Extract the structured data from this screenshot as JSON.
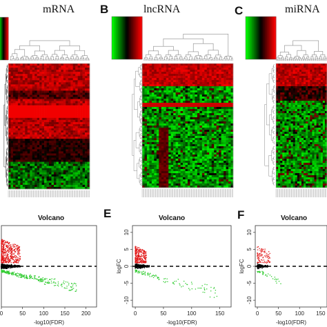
{
  "panels": [
    {
      "letter": "",
      "title": "mRNA"
    },
    {
      "letter": "B",
      "title": "lncRNA"
    },
    {
      "letter": "C",
      "title": "miRNA"
    },
    {
      "letter": "",
      "title": "Volcano"
    },
    {
      "letter": "E",
      "title": "Volcano"
    },
    {
      "letter": "F",
      "title": "Volcano"
    }
  ],
  "colors": {
    "up": "#e11919",
    "down": "#33cc33",
    "neutral": "#000000",
    "low": "#00ff00",
    "high": "#ff0000"
  },
  "chart_data": [
    {
      "type": "heatmap",
      "title": "mRNA",
      "palette": [
        "#00ff00",
        "#000000",
        "#ff0000"
      ],
      "dominant": "red"
    },
    {
      "type": "heatmap",
      "title": "lncRNA",
      "palette": [
        "#00ff00",
        "#000000",
        "#ff0000"
      ],
      "dominant": "green"
    },
    {
      "type": "heatmap",
      "title": "miRNA",
      "palette": [
        "#00ff00",
        "#000000",
        "#ff0000"
      ],
      "dominant": "mixed"
    },
    {
      "type": "scatter",
      "title": "Volcano",
      "xlabel": "-log10(FDR)",
      "ylabel": "logFC",
      "x_ticks": [
        0,
        50,
        100,
        150,
        200
      ],
      "y_ticks": [
        -10,
        -5,
        0,
        5,
        10
      ],
      "xlim": [
        0,
        225
      ],
      "ylim": [
        -12,
        12
      ],
      "threshold_logfc": 1,
      "series": [
        {
          "color": "up",
          "x_max": 45,
          "y_max": 8,
          "count": 420
        },
        {
          "color": "down",
          "x_max": 185,
          "y_max": -6,
          "count": 260
        },
        {
          "color": "neutral",
          "x_max": 45,
          "y_max": 1,
          "count": 500
        }
      ]
    },
    {
      "type": "scatter",
      "title": "Volcano",
      "xlabel": "-log10(FDR)",
      "ylabel": "logFC",
      "x_ticks": [
        0,
        50,
        100,
        150
      ],
      "y_ticks": [
        -10,
        -5,
        0,
        5,
        10
      ],
      "xlim": [
        -5,
        170
      ],
      "ylim": [
        -12,
        12
      ],
      "threshold_logfc": 1,
      "series": [
        {
          "color": "up",
          "x_max": 20,
          "y_max": 6,
          "count": 260
        },
        {
          "color": "down",
          "x_max": 150,
          "y_max": -8,
          "count": 110
        },
        {
          "color": "neutral",
          "x_max": 25,
          "y_max": 1,
          "count": 300
        }
      ]
    },
    {
      "type": "scatter",
      "title": "Volcano",
      "xlabel": "-log10(FDR)",
      "ylabel": "logFC",
      "x_ticks": [
        0,
        50,
        100,
        150
      ],
      "y_ticks": [
        -10,
        -5,
        0,
        5,
        10
      ],
      "xlim": [
        -5,
        165
      ],
      "ylim": [
        -12,
        12
      ],
      "threshold_logfc": 1,
      "series": [
        {
          "color": "up",
          "x_max": 30,
          "y_max": 6,
          "count": 90
        },
        {
          "color": "down",
          "x_max": 60,
          "y_max": -4,
          "count": 35
        },
        {
          "color": "neutral",
          "x_max": 25,
          "y_max": 1,
          "count": 140
        }
      ]
    }
  ]
}
